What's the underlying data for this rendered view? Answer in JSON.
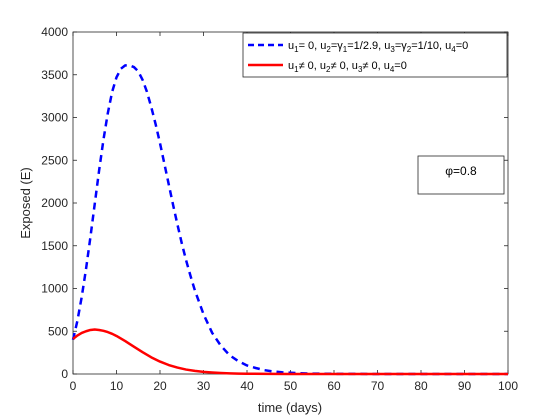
{
  "chart_data": {
    "type": "line",
    "title": "",
    "xlabel": "time (days)",
    "ylabel": "Exposed (E)",
    "xlim": [
      0,
      100
    ],
    "ylim": [
      0,
      4000
    ],
    "xticks": [
      0,
      10,
      20,
      30,
      40,
      50,
      60,
      70,
      80,
      90,
      100
    ],
    "yticks": [
      0,
      500,
      1000,
      1500,
      2000,
      2500,
      3000,
      3500,
      4000
    ],
    "grid": false,
    "legend_position": "top-right",
    "annotation": "φ=0.8",
    "series": [
      {
        "name": "u1= 0, u2=γ1=1/2.9, u3=γ2=1/10, u4=0",
        "color": "#0000ff",
        "style": "dashed",
        "x": [
          0,
          1,
          2,
          3,
          4,
          5,
          6,
          7,
          8,
          9,
          10,
          11,
          12,
          13,
          14,
          15,
          16,
          17,
          18,
          19,
          20,
          21,
          22,
          23,
          24,
          25,
          26,
          27,
          28,
          30,
          32,
          34,
          36,
          38,
          40,
          42,
          44,
          46,
          48,
          50,
          52,
          55,
          58,
          60,
          65,
          70,
          75,
          80,
          85,
          90,
          95,
          100
        ],
        "y": [
          400,
          620,
          900,
          1230,
          1600,
          1990,
          2380,
          2740,
          3050,
          3300,
          3470,
          3570,
          3610,
          3610,
          3590,
          3540,
          3440,
          3300,
          3120,
          2920,
          2700,
          2460,
          2220,
          1980,
          1750,
          1530,
          1330,
          1150,
          980,
          700,
          480,
          330,
          220,
          150,
          100,
          70,
          45,
          30,
          20,
          14,
          9,
          5,
          3,
          2,
          1,
          0,
          0,
          0,
          0,
          0,
          0,
          0
        ]
      },
      {
        "name": "u1≠ 0, u2≠ 0, u3≠ 0, u4=0",
        "color": "#ff0000",
        "style": "solid",
        "x": [
          0,
          1,
          2,
          3,
          4,
          5,
          6,
          7,
          8,
          9,
          10,
          12,
          14,
          16,
          18,
          20,
          22,
          24,
          26,
          28,
          30,
          32,
          34,
          36,
          38,
          40,
          45,
          50,
          55,
          60,
          70,
          80,
          90,
          100
        ],
        "y": [
          410,
          450,
          480,
          500,
          515,
          520,
          515,
          505,
          490,
          470,
          445,
          385,
          320,
          255,
          195,
          145,
          105,
          75,
          52,
          36,
          25,
          17,
          11,
          7,
          5,
          3,
          1,
          0,
          0,
          0,
          0,
          0,
          0,
          0
        ]
      }
    ]
  },
  "legend": {
    "entries": [
      "u1= 0, u2=γ1=1/2.9, u3=γ2=1/10, u4=0",
      "u1≠ 0, u2≠ 0, u3≠ 0, u4=0"
    ]
  },
  "annotation_box": {
    "text": "φ=0.8"
  }
}
